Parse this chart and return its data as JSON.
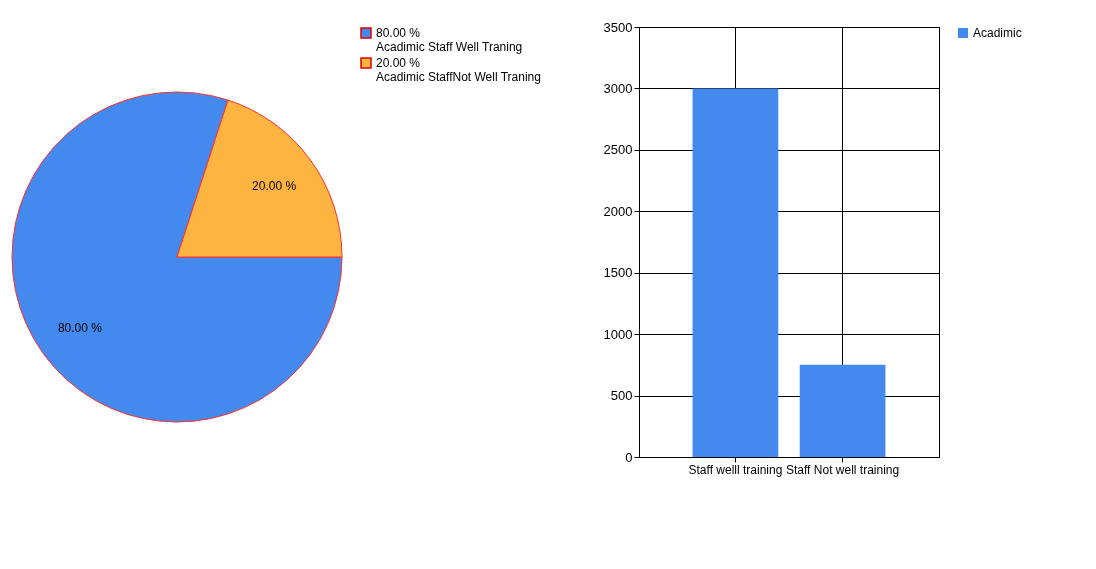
{
  "chart_data": [
    {
      "type": "pie",
      "categories": [
        "Acadimic Staff Well Traning",
        "Acadimic StaffNot Well Traning"
      ],
      "values": [
        80,
        20
      ],
      "colors": [
        "#448aee",
        "#fdb441"
      ],
      "value_labels": [
        "80.00 %",
        "20.00 %"
      ],
      "legend": "top right"
    },
    {
      "type": "bar",
      "categories": [
        "Staff welll training",
        "Staff Not well training"
      ],
      "series": [
        {
          "name": "Acadimic",
          "color": "#448aee",
          "values": [
            3000,
            750
          ]
        }
      ],
      "ylim": [
        0,
        3500
      ],
      "yticks": [
        0,
        500,
        1000,
        1500,
        2000,
        2500,
        3000,
        3500
      ],
      "grid": true,
      "legend": "top right"
    }
  ]
}
